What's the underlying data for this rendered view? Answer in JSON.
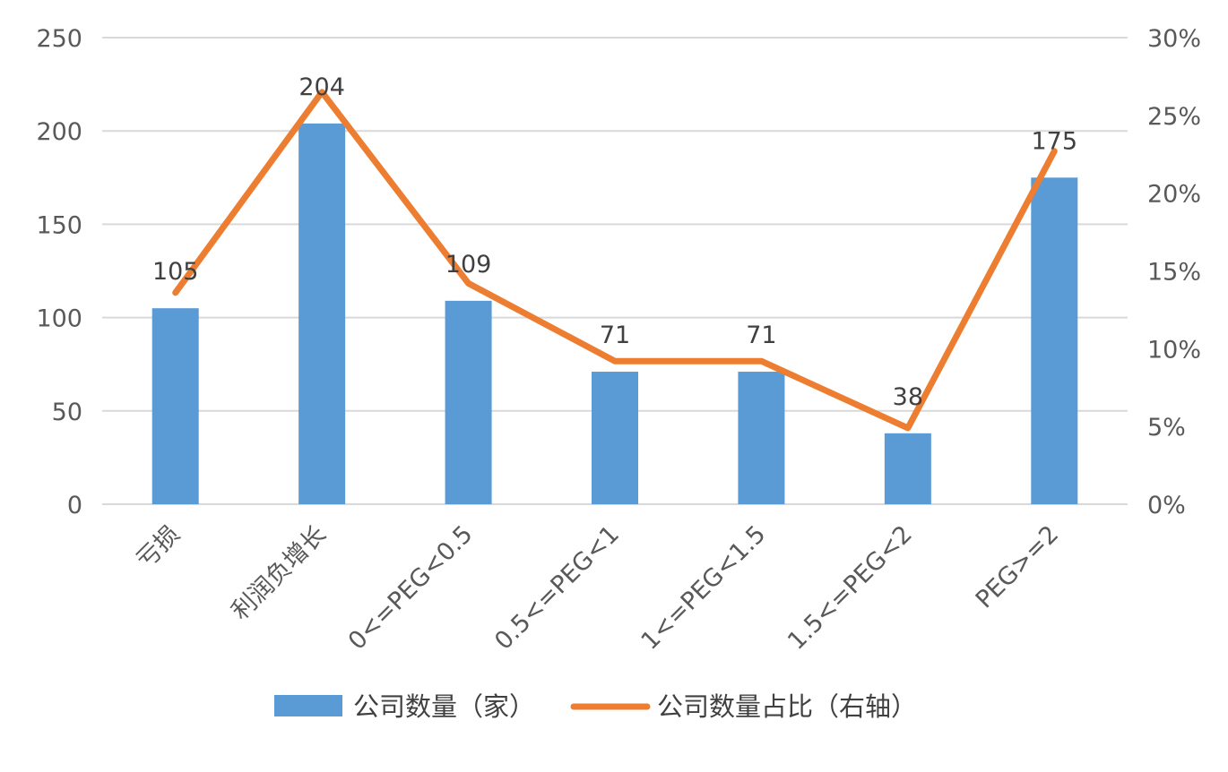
{
  "chart_data": {
    "type": "bar",
    "categories": [
      "亏损",
      "利润负增长",
      "0<=PEG<0.5",
      "0.5<=PEG<1",
      "1<=PEG<1.5",
      "1.5<=PEG<2",
      "PEG>=2"
    ],
    "series": [
      {
        "name": "公司数量（家）",
        "type": "bar",
        "axis": "left",
        "values": [
          105,
          204,
          109,
          71,
          71,
          38,
          175
        ],
        "color": "#5b9bd5"
      },
      {
        "name": "公司数量占比（右轴）",
        "type": "line",
        "axis": "right",
        "values": [
          13.6,
          26.5,
          14.2,
          9.2,
          9.2,
          4.9,
          22.7
        ],
        "color": "#ed7d31"
      }
    ],
    "data_labels": [
      "105",
      "204",
      "109",
      "71",
      "71",
      "38",
      "175"
    ],
    "y_left": {
      "min": 0,
      "max": 250,
      "step": 50,
      "ticks": [
        "0",
        "50",
        "100",
        "150",
        "200",
        "250"
      ]
    },
    "y_right": {
      "min": 0,
      "max": 30,
      "step": 5,
      "ticks": [
        "0%",
        "5%",
        "10%",
        "15%",
        "20%",
        "25%",
        "30%"
      ]
    },
    "grid": true,
    "legend": {
      "position": "bottom"
    }
  }
}
